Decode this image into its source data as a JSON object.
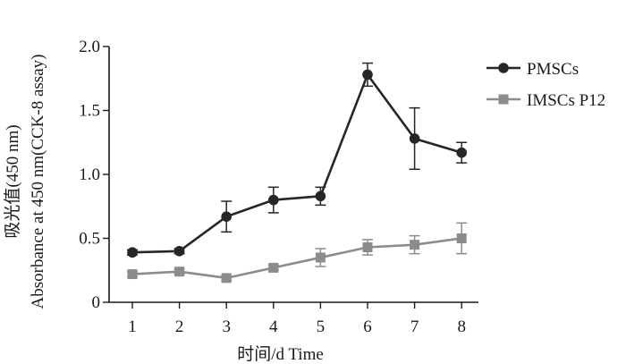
{
  "chart_data": {
    "type": "line",
    "title": "",
    "xlabel": "时间/d Time",
    "ylabel": [
      "吸光值(450 nm)",
      "Absorbance at 450 nm(CCK-8 assay)"
    ],
    "x": [
      1,
      2,
      3,
      4,
      5,
      6,
      7,
      8
    ],
    "xtick_labels": [
      "1",
      "2",
      "3",
      "4",
      "5",
      "6",
      "7",
      "8"
    ],
    "ylim": [
      0,
      2.0
    ],
    "yticks": [
      0,
      0.5,
      1.0,
      1.5,
      2.0
    ],
    "ytick_labels": [
      "0",
      "0.5",
      "1.0",
      "1.5",
      "2.0"
    ],
    "grid": false,
    "legend_position": "top-right",
    "series": [
      {
        "name": "PMSCs",
        "marker": "circle",
        "color": "#262626",
        "values": [
          0.39,
          0.4,
          0.67,
          0.8,
          0.83,
          1.78,
          1.28,
          1.17
        ],
        "errors": [
          0.02,
          0.02,
          0.12,
          0.1,
          0.07,
          0.09,
          0.24,
          0.08
        ]
      },
      {
        "name": "IMSCs P12",
        "marker": "square",
        "color": "#8c8c8c",
        "values": [
          0.22,
          0.24,
          0.19,
          0.27,
          0.35,
          0.43,
          0.45,
          0.5
        ],
        "errors": [
          0.02,
          0.02,
          0.02,
          0.02,
          0.07,
          0.06,
          0.07,
          0.12
        ]
      }
    ]
  }
}
